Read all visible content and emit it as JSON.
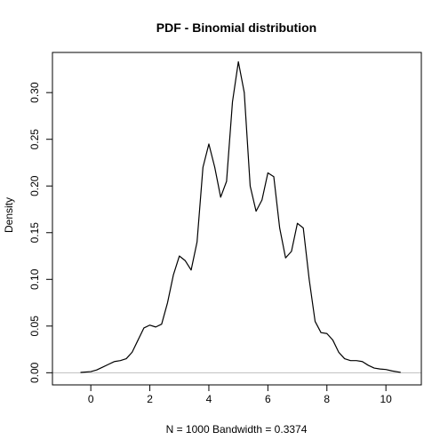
{
  "chart_data": {
    "type": "line",
    "title": "PDF - Binomial distribution",
    "xlabel": "N = 1000   Bandwidth = 0.3374",
    "ylabel": "Density",
    "xlim": [
      -1.3,
      11.2
    ],
    "ylim": [
      -0.013,
      0.343
    ],
    "x_ticks": [
      0,
      2,
      4,
      6,
      8,
      10
    ],
    "y_ticks": [
      0.0,
      0.05,
      0.1,
      0.15,
      0.2,
      0.25,
      0.3
    ],
    "x_tick_labels": [
      "0",
      "2",
      "4",
      "6",
      "8",
      "10"
    ],
    "y_tick_labels": [
      "0.00",
      "0.05",
      "0.10",
      "0.15",
      "0.20",
      "0.25",
      "0.30"
    ],
    "baseline": 0,
    "baseline_color": "#bebebe",
    "line_color": "#000000",
    "grid": false,
    "series": [
      {
        "x": [
          -0.35,
          0.0,
          0.2,
          0.4,
          0.6,
          0.8,
          1.0,
          1.2,
          1.4,
          1.6,
          1.8,
          2.0,
          2.2,
          2.4,
          2.6,
          2.8,
          3.0,
          3.2,
          3.4,
          3.6,
          3.8,
          4.0,
          4.2,
          4.4,
          4.6,
          4.8,
          5.0,
          5.2,
          5.4,
          5.6,
          5.8,
          6.0,
          6.2,
          6.4,
          6.6,
          6.8,
          7.0,
          7.2,
          7.4,
          7.6,
          7.8,
          8.0,
          8.2,
          8.4,
          8.6,
          8.8,
          9.0,
          9.2,
          9.4,
          9.6,
          9.8,
          10.0,
          10.2,
          10.5
        ],
        "y": [
          0.0003,
          0.0012,
          0.003,
          0.006,
          0.009,
          0.012,
          0.013,
          0.015,
          0.022,
          0.035,
          0.048,
          0.051,
          0.049,
          0.052,
          0.075,
          0.105,
          0.125,
          0.12,
          0.11,
          0.14,
          0.22,
          0.245,
          0.22,
          0.188,
          0.205,
          0.29,
          0.333,
          0.3,
          0.2,
          0.173,
          0.185,
          0.214,
          0.21,
          0.155,
          0.123,
          0.13,
          0.16,
          0.155,
          0.1,
          0.055,
          0.043,
          0.042,
          0.035,
          0.022,
          0.015,
          0.013,
          0.013,
          0.012,
          0.008,
          0.005,
          0.004,
          0.0035,
          0.002,
          0.0004
        ]
      }
    ]
  }
}
